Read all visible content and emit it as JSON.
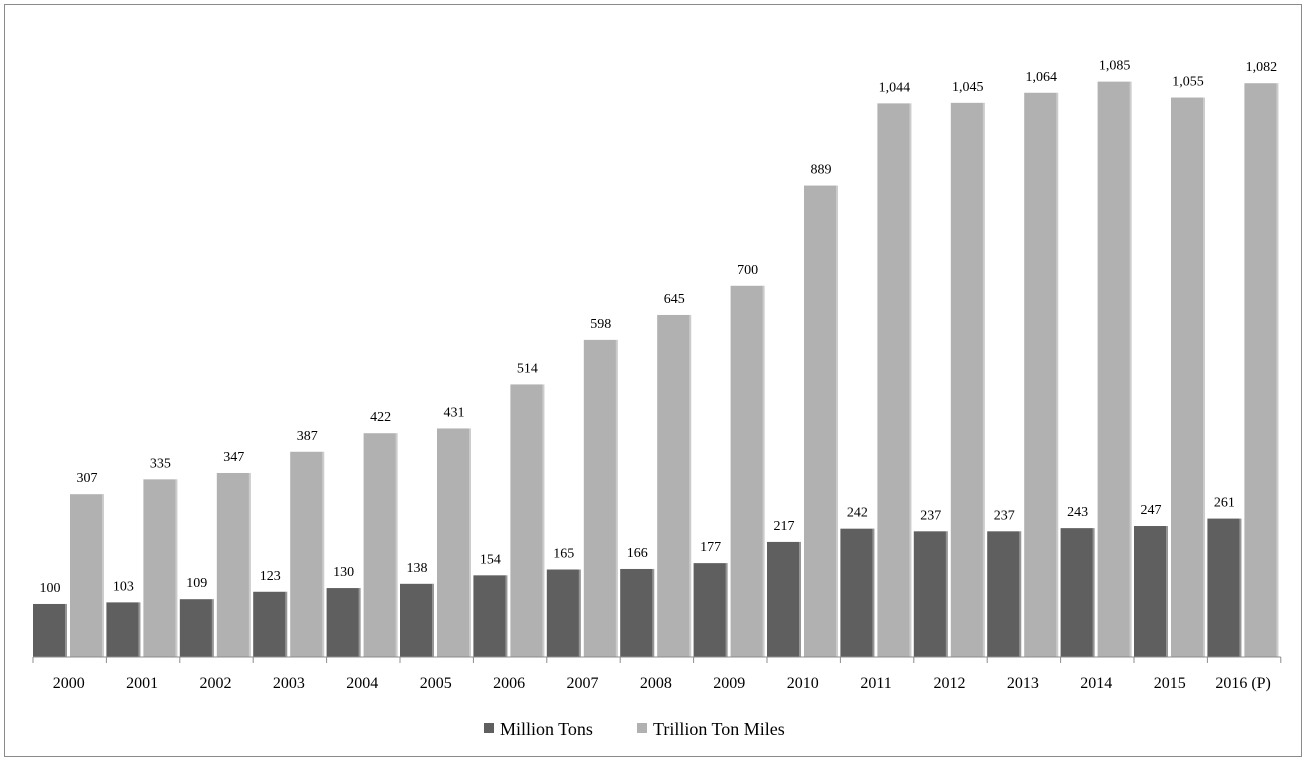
{
  "chart_data": {
    "type": "bar",
    "title": "",
    "xlabel": "",
    "ylabel": "",
    "ylim": [
      0,
      1150
    ],
    "grid": false,
    "legend_position": "bottom",
    "categories": [
      "2000",
      "2001",
      "2002",
      "2003",
      "2004",
      "2005",
      "2006",
      "2007",
      "2008",
      "2009",
      "2010",
      "2011",
      "2012",
      "2013",
      "2014",
      "2015",
      "2016 (P)"
    ],
    "series": [
      {
        "name": "Million Tons",
        "color": "#5f5f5f",
        "values": [
          100,
          103,
          109,
          123,
          130,
          138,
          154,
          165,
          166,
          177,
          217,
          242,
          237,
          237,
          243,
          247,
          261
        ],
        "labels": [
          "100",
          "103",
          "109",
          "123",
          "130",
          "138",
          "154",
          "165",
          "166",
          "177",
          "217",
          "242",
          "237",
          "237",
          "243",
          "247",
          "261"
        ]
      },
      {
        "name": "Trillion Ton Miles",
        "color": "#b1b1b1",
        "values": [
          307,
          335,
          347,
          387,
          422,
          431,
          514,
          598,
          645,
          700,
          889,
          1044,
          1045,
          1064,
          1085,
          1055,
          1082
        ],
        "labels": [
          "307",
          "335",
          "347",
          "387",
          "422",
          "431",
          "514",
          "598",
          "645",
          "700",
          "889",
          "1,044",
          "1,045",
          "1,064",
          "1,085",
          "1,055",
          "1,082"
        ]
      }
    ]
  }
}
